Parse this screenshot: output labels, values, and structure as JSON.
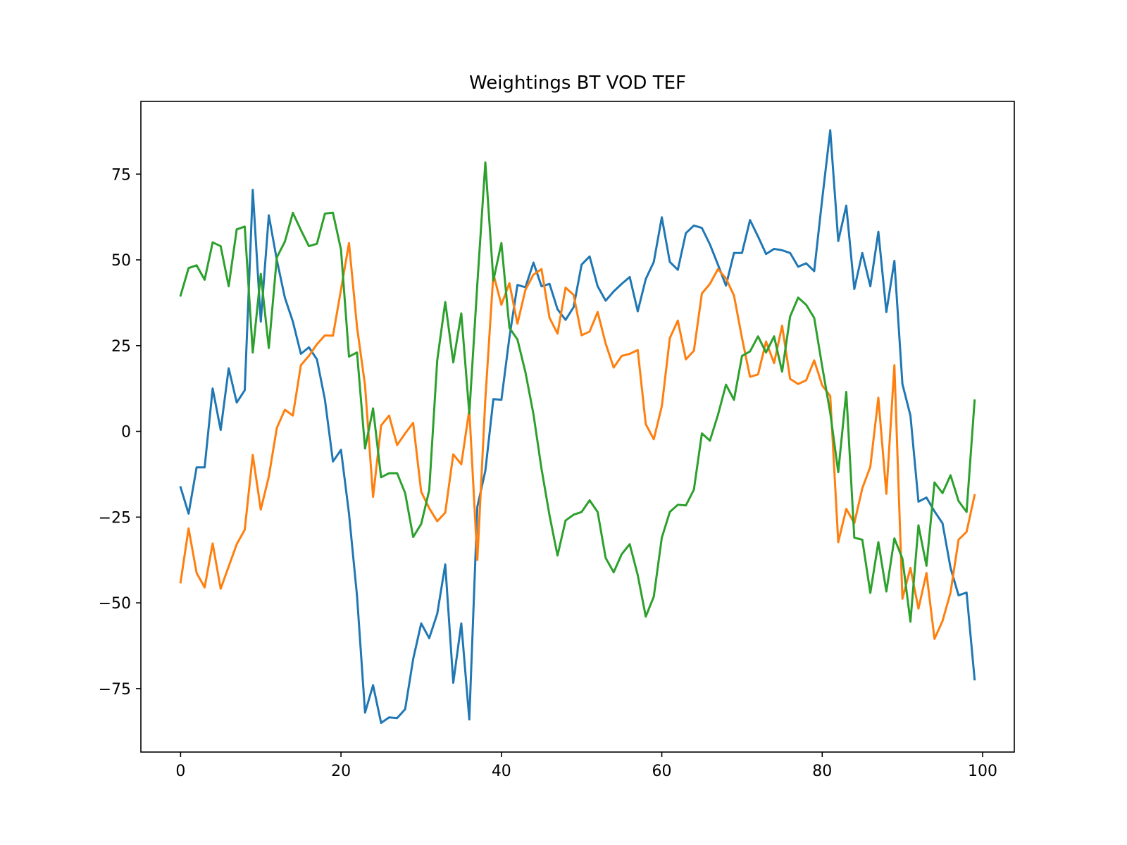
{
  "chart_data": {
    "type": "line",
    "title": "Weightings BT VOD TEF",
    "x": [
      0,
      1,
      2,
      3,
      4,
      5,
      6,
      7,
      8,
      9,
      10,
      11,
      12,
      13,
      14,
      15,
      16,
      17,
      18,
      19,
      20,
      21,
      22,
      23,
      24,
      25,
      26,
      27,
      28,
      29,
      30,
      31,
      32,
      33,
      34,
      35,
      36,
      37,
      38,
      39,
      40,
      41,
      42,
      43,
      44,
      45,
      46,
      47,
      48,
      49,
      50,
      51,
      52,
      53,
      54,
      55,
      56,
      57,
      58,
      59,
      60,
      61,
      62,
      63,
      64,
      65,
      66,
      67,
      68,
      69,
      70,
      71,
      72,
      73,
      74,
      75,
      76,
      77,
      78,
      79,
      80,
      81,
      82,
      83,
      84,
      85,
      86,
      87,
      88,
      89,
      90,
      91,
      92,
      93,
      94,
      95,
      96,
      97,
      98,
      99
    ],
    "series": [
      {
        "color": "#1f77b4",
        "values": [
          -16.3,
          -24,
          -10.5,
          -10.5,
          12.5,
          0.4,
          18.4,
          8.4,
          12,
          70.4,
          32,
          63,
          50,
          39,
          32,
          22.6,
          24.5,
          21,
          9.2,
          -8.8,
          -5.4,
          -24,
          -48,
          -82,
          -74,
          -85,
          -83.4,
          -83.6,
          -81,
          -66.4,
          -56,
          -60.3,
          -53.2,
          -38.8,
          -73.3,
          -56,
          -84,
          -22,
          -11.5,
          9.4,
          9.2,
          27.4,
          42.7,
          42,
          49.2,
          42.3,
          43,
          35.6,
          32.5,
          36.2,
          48.6,
          51,
          42.3,
          38.1,
          40.8,
          43,
          45,
          35,
          44.4,
          49.4,
          62.4,
          49.4,
          47.1,
          57.8,
          60,
          59.3,
          54.5,
          48.6,
          42.5,
          52,
          52,
          61.6,
          56.8,
          51.7,
          53.2,
          52.8,
          52,
          48,
          49,
          46.7,
          67.7,
          87.8,
          55.5,
          65.8,
          41.5,
          52,
          42.3,
          58.2,
          34.8,
          49.7,
          13.8,
          4.6,
          -20.5,
          -19.3,
          -23.3,
          -26.8,
          -39.8,
          -47.8,
          -47,
          -72.3
        ]
      },
      {
        "color": "#ff7f0e",
        "values": [
          -44,
          -28.3,
          -41.3,
          -45.5,
          -32.7,
          -45.9,
          -39.4,
          -32.9,
          -28.7,
          -6.9,
          -22.8,
          -13.2,
          1,
          6.3,
          4.6,
          19.3,
          22,
          25.4,
          28,
          27.9,
          41.3,
          54.9,
          30.4,
          13.4,
          -19.1,
          1.7,
          4.6,
          -4,
          -0.6,
          2.5,
          -17.6,
          -22.4,
          -26.2,
          -23.7,
          -6.7,
          -9.6,
          6.3,
          -37.5,
          9.4,
          45.9,
          36.9,
          43.2,
          31.4,
          41.3,
          45.7,
          47.3,
          33.1,
          28.5,
          41.9,
          39.8,
          28,
          29.1,
          34.8,
          25.6,
          18.6,
          22,
          22.6,
          23.7,
          2.1,
          -2.3,
          7.3,
          27.2,
          32.3,
          21,
          23.5,
          40.2,
          43,
          47.3,
          44.6,
          39.6,
          27.2,
          15.9,
          16.6,
          26.2,
          19.9,
          30.8,
          15.3,
          13.8,
          14.9,
          20.7,
          13.4,
          10.3,
          -32.3,
          -22.6,
          -26.8,
          -16.6,
          -10.3,
          9.8,
          -18.2,
          19.3,
          -48.8,
          -39.8,
          -51.7,
          -41.3,
          -60.5,
          -55.3,
          -47,
          -31.6,
          -29.3,
          -18.6
        ]
      },
      {
        "color": "#2ca02c",
        "values": [
          39.6,
          47.6,
          48.4,
          44.2,
          55.1,
          54,
          42.3,
          58.9,
          59.7,
          23,
          45.9,
          24.3,
          50.7,
          55.3,
          63.7,
          58.7,
          54,
          54.7,
          63.5,
          63.7,
          53,
          21.8,
          23,
          -5,
          6.7,
          -13.4,
          -12.2,
          -12.2,
          -18,
          -30.8,
          -27,
          -17.2,
          20.7,
          37.7,
          20.1,
          34.4,
          5.2,
          43,
          78.4,
          44,
          54.9,
          30.2,
          26.8,
          17.2,
          5,
          -10.9,
          -24.5,
          -36.2,
          -26,
          -24.3,
          -23.5,
          -20.1,
          -23.5,
          -36.9,
          -41.1,
          -35.8,
          -32.9,
          -41.9,
          -54,
          -48.2,
          -31,
          -23.5,
          -21.4,
          -21.6,
          -17,
          -0.6,
          -2.7,
          4.8,
          13.6,
          9.2,
          22,
          23.3,
          27.7,
          23,
          27.7,
          17.4,
          33.5,
          39,
          36.9,
          33.1,
          18.9,
          5.4,
          -11.9,
          11.5,
          -31,
          -31.6,
          -47.1,
          -32.3,
          -46.7,
          -31.2,
          -37.1,
          -55.5,
          -27.4,
          -39.2,
          -14.9,
          -18,
          -12.8,
          -20.3,
          -23.5,
          9
        ]
      }
    ],
    "xlim": [
      -4.95,
      103.95
    ],
    "xticks": [
      0,
      20,
      40,
      60,
      80,
      100
    ],
    "ylim": [
      -93.5,
      96.2
    ],
    "yticks": [
      -75,
      -50,
      -25,
      0,
      25,
      50,
      75
    ],
    "grid": false
  }
}
